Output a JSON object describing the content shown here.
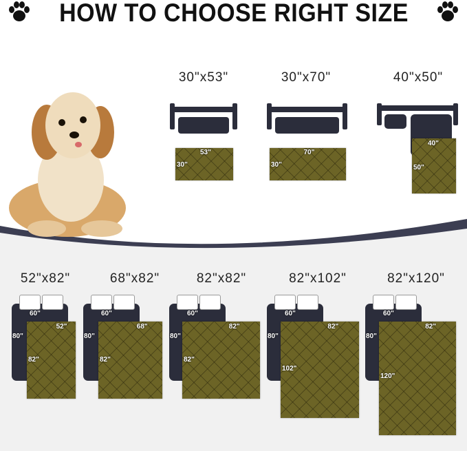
{
  "title": "HOW TO CHOOSE RIGHT SIZE",
  "colors": {
    "mat": "#6c6426",
    "furniture": "#2b2d3b",
    "band": "#3c3e52"
  },
  "sofa_sizes": [
    {
      "label": "30\"x53\"",
      "width": "53\"",
      "length": "30\"",
      "furniture": "sofa"
    },
    {
      "label": "30\"x70\"",
      "width": "70\"",
      "length": "30\"",
      "furniture": "sofa"
    },
    {
      "label": "40\"x50\"",
      "width": "40\"",
      "length": "50\"",
      "furniture": "sectional-sofa"
    }
  ],
  "bed": {
    "width": "60\"",
    "length": "80\""
  },
  "bed_sizes": [
    {
      "label": "52\"x82\"",
      "width": "52\"",
      "length": "82\""
    },
    {
      "label": "68\"x82\"",
      "width": "68\"",
      "length": "82\""
    },
    {
      "label": "82\"x82\"",
      "width": "82\"",
      "length": "82\""
    },
    {
      "label": "82\"x102\"",
      "width": "82\"",
      "length": "102\""
    },
    {
      "label": "82\"x120\"",
      "width": "82\"",
      "length": "120\""
    }
  ]
}
